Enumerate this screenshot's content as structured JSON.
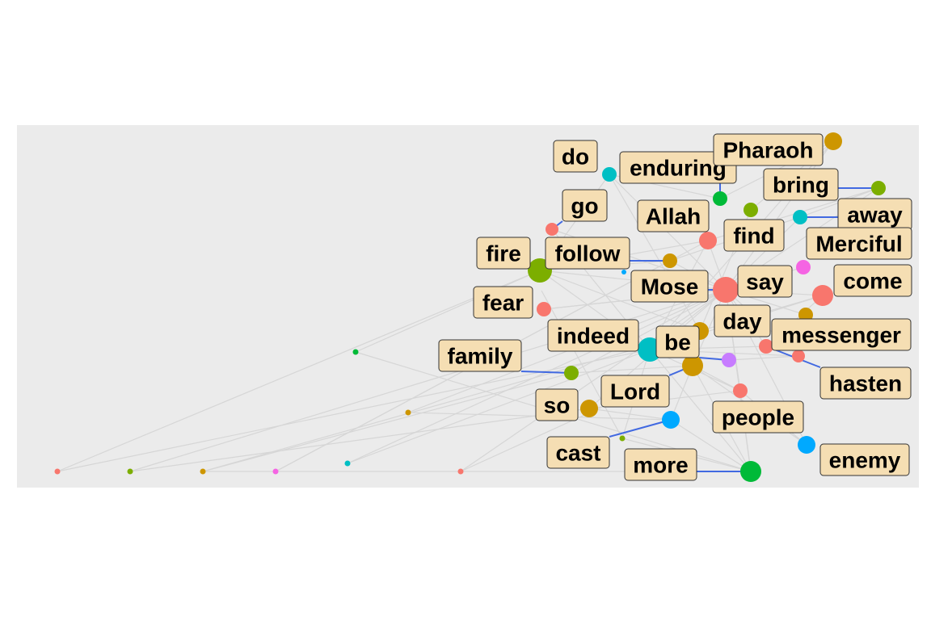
{
  "chart_data": {
    "type": "network",
    "title": "",
    "labeled_nodes": [
      {
        "word": "do",
        "color": "#00BFC4"
      },
      {
        "word": "enduring",
        "color": "#00BA38"
      },
      {
        "word": "Pharaoh",
        "color": "#CD9600"
      },
      {
        "word": "bring",
        "color": "#7CAE00"
      },
      {
        "word": "go",
        "color": "#F8766D"
      },
      {
        "word": "Allah",
        "color": "#F8766D"
      },
      {
        "word": "away",
        "color": "#00BFC4"
      },
      {
        "word": "find",
        "color": "#7CAE00"
      },
      {
        "word": "fire",
        "color": "#7CAE00"
      },
      {
        "word": "follow",
        "color": "#CD9600"
      },
      {
        "word": "Merciful",
        "color": "#F564E3"
      },
      {
        "word": "Mose",
        "color": "#F8766D"
      },
      {
        "word": "say",
        "color": "#F8766D"
      },
      {
        "word": "come",
        "color": "#CD9600"
      },
      {
        "word": "fear",
        "color": "#F8766D"
      },
      {
        "word": "day",
        "color": "#CD9600"
      },
      {
        "word": "indeed",
        "color": "#00BFC4"
      },
      {
        "word": "be",
        "color": "#C77CFF"
      },
      {
        "word": "messenger",
        "color": "#F8766D"
      },
      {
        "word": "family",
        "color": "#7CAE00"
      },
      {
        "word": "hasten",
        "color": "#F8766D"
      },
      {
        "word": "Lord",
        "color": "#CD9600"
      },
      {
        "word": "so",
        "color": "#CD9600"
      },
      {
        "word": "people",
        "color": "#F8766D"
      },
      {
        "word": "cast",
        "color": "#00A9FF"
      },
      {
        "word": "enemy",
        "color": "#00A9FF"
      },
      {
        "word": "more",
        "color": "#00BA38"
      }
    ],
    "colors": {
      "panel": "#ebebeb",
      "label_fill": "#f5deb3",
      "label_border": "#333333",
      "leader_line": "#4169e1",
      "edge": "#d6d6d6"
    }
  }
}
